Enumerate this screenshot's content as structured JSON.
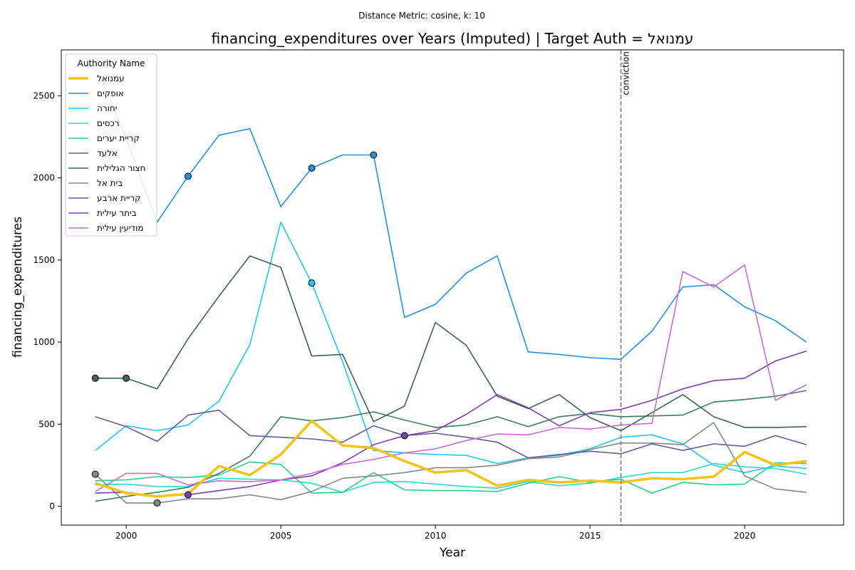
{
  "suptitle": "Distance Metric: cosine, k: 10",
  "chart_data": {
    "type": "line",
    "title": "financing_expenditures over Years (Imputed) | Target Auth = עמנואל",
    "xlabel": "Year",
    "ylabel": "financing_expenditures",
    "xlim": [
      1997.9,
      2023.2
    ],
    "ylim": [
      -115,
      2780
    ],
    "x_ticks": [
      2000,
      2005,
      2010,
      2015,
      2020
    ],
    "y_ticks": [
      0,
      500,
      1000,
      1500,
      2000,
      2500
    ],
    "grid": false,
    "x": [
      1999,
      2000,
      2001,
      2002,
      2003,
      2004,
      2005,
      2006,
      2007,
      2008,
      2009,
      2010,
      2011,
      2012,
      2013,
      2014,
      2015,
      2016,
      2017,
      2018,
      2019,
      2020,
      2021,
      2022
    ],
    "legend": {
      "title": "Authority Name",
      "placement": "top-left"
    },
    "vline": {
      "x": 2016,
      "label": "conviction",
      "color": "#7a7a7a"
    },
    "series": [
      {
        "name": "עמנואל",
        "color": "#f0c419",
        "highlight": true,
        "values": [
          140,
          80,
          60,
          75,
          245,
          190,
          315,
          520,
          370,
          355,
          275,
          205,
          220,
          125,
          160,
          145,
          155,
          145,
          170,
          165,
          180,
          330,
          250,
          275
        ]
      },
      {
        "name": "אופקים",
        "color": "#2391e0",
        "values": [
          2690,
          2240,
          1730,
          2010,
          2260,
          2300,
          1825,
          2060,
          2140,
          2140,
          1150,
          1230,
          1420,
          1525,
          940,
          925,
          905,
          895,
          1065,
          1335,
          1350,
          1215,
          1130,
          1000
        ],
        "imputed_x": [
          2002,
          2006,
          2008
        ]
      },
      {
        "name": "יחורה",
        "color": "#22c7f0",
        "values": [
          340,
          490,
          460,
          495,
          640,
          985,
          1730,
          1360,
          880,
          340,
          325,
          315,
          310,
          260,
          295,
          310,
          350,
          420,
          435,
          380,
          250,
          205,
          245,
          230
        ],
        "imputed_x": [
          2006
        ]
      },
      {
        "name": "רכסים",
        "color": "#2ad9c6",
        "values": [
          130,
          135,
          120,
          120,
          170,
          165,
          160,
          140,
          85,
          145,
          150,
          135,
          120,
          110,
          150,
          125,
          140,
          175,
          205,
          205,
          260,
          240,
          230,
          195
        ]
      },
      {
        "name": "קריית יערים",
        "color": "#2bcf8a",
        "values": [
          155,
          160,
          180,
          175,
          190,
          270,
          255,
          80,
          85,
          205,
          100,
          95,
          95,
          90,
          140,
          180,
          145,
          165,
          80,
          145,
          130,
          135,
          265,
          260
        ]
      },
      {
        "name": "אלעד",
        "color": "#3b7d63",
        "values": [
          30,
          60,
          85,
          115,
          200,
          305,
          545,
          520,
          540,
          575,
          525,
          480,
          495,
          545,
          485,
          545,
          565,
          545,
          550,
          555,
          635,
          650,
          670,
          705
        ]
      },
      {
        "name": "חצור הגלילית",
        "color": "#3e6354",
        "values": [
          780,
          780,
          715,
          1020,
          1280,
          1525,
          1455,
          915,
          925,
          515,
          610,
          1120,
          980,
          670,
          595,
          680,
          540,
          460,
          570,
          680,
          545,
          480,
          480,
          485
        ],
        "imputed_x": [
          1999,
          2000
        ]
      },
      {
        "name": "בית אל",
        "color": "#808a88",
        "values": [
          195,
          20,
          20,
          45,
          45,
          70,
          40,
          90,
          170,
          185,
          205,
          235,
          235,
          250,
          290,
          300,
          345,
          385,
          385,
          375,
          510,
          185,
          105,
          85
        ],
        "imputed_x": [
          1999,
          2001
        ]
      },
      {
        "name": "קריית ארבע",
        "color": "#655a9a",
        "values": [
          545,
          485,
          395,
          555,
          585,
          430,
          420,
          410,
          390,
          490,
          430,
          445,
          420,
          390,
          295,
          315,
          335,
          320,
          380,
          340,
          380,
          365,
          430,
          375
        ]
      },
      {
        "name": "ביתר עילית",
        "color": "#7b3fb0",
        "values": [
          80,
          85,
          60,
          70,
          95,
          120,
          160,
          185,
          265,
          375,
          430,
          460,
          560,
          680,
          600,
          490,
          570,
          590,
          645,
          715,
          765,
          780,
          885,
          945
        ],
        "imputed_x": [
          2002,
          2009
        ]
      },
      {
        "name": "מודיעין עילית",
        "color": "#c86dd1",
        "values": [
          90,
          200,
          200,
          130,
          155,
          150,
          160,
          200,
          255,
          285,
          325,
          350,
          400,
          440,
          435,
          480,
          470,
          495,
          505,
          1430,
          1335,
          1470,
          645,
          740
        ]
      }
    ]
  }
}
